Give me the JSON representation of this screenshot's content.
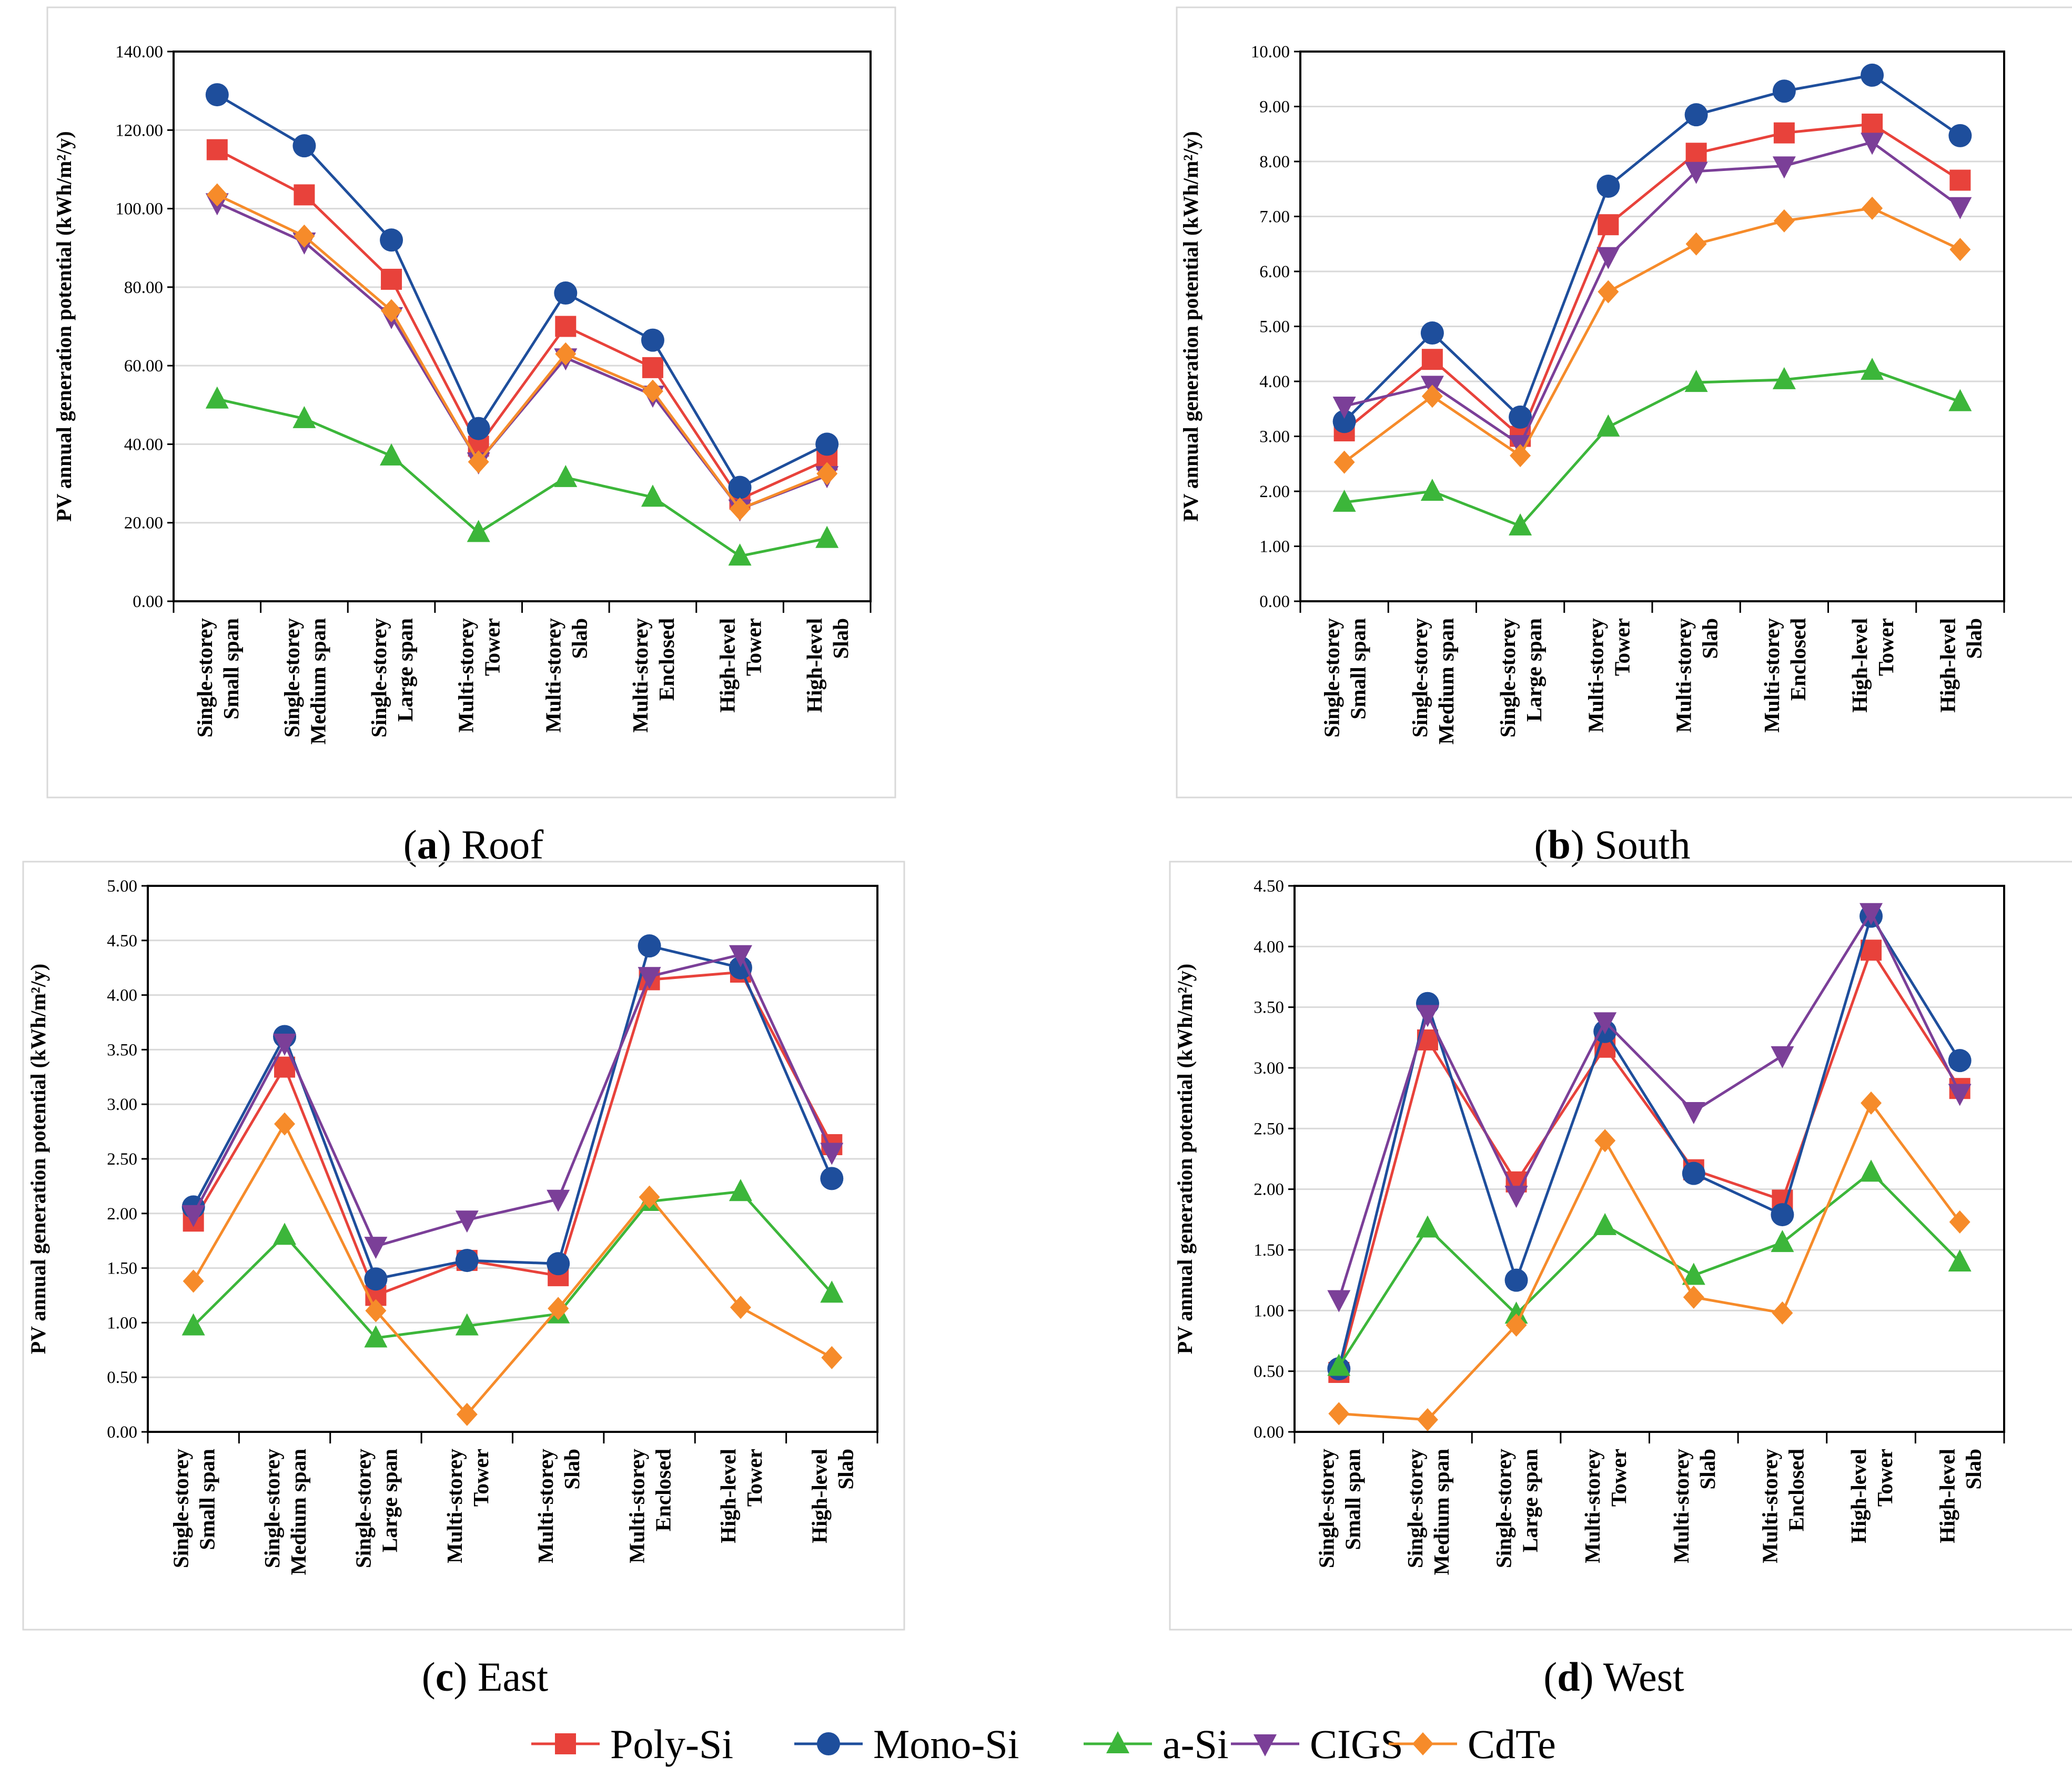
{
  "series_meta": [
    {
      "name": "Poly-Si",
      "color": "#e8423b",
      "marker": "square"
    },
    {
      "name": "Mono-Si",
      "color": "#1e4e9c",
      "marker": "circle"
    },
    {
      "name": "a-Si",
      "color": "#3cb63a",
      "marker": "triangle-up"
    },
    {
      "name": "CIGS",
      "color": "#7b3f98",
      "marker": "triangle-down"
    },
    {
      "name": "CdTe",
      "color": "#f68b2a",
      "marker": "diamond"
    }
  ],
  "chart_data": [
    {
      "type": "line",
      "caption_letter": "a",
      "caption_text": " Roof",
      "ylabel": "PV annual generation potential (kWh/m²/y)",
      "ylim": [
        0,
        140
      ],
      "yticks": [
        "0.00",
        "20.00",
        "40.00",
        "60.00",
        "80.00",
        "100.00",
        "120.00",
        "140.00"
      ],
      "categories": [
        [
          "Single-storey",
          "Small span"
        ],
        [
          "Single-storey",
          "Medium span"
        ],
        [
          "Single-storey",
          "Large span"
        ],
        [
          "Multi-storey",
          "Tower"
        ],
        [
          "Multi-storey",
          "Slab"
        ],
        [
          "Multi-storey",
          "Enclosed"
        ],
        [
          "High-level",
          "Tower"
        ],
        [
          "High-level",
          "Slab"
        ]
      ],
      "series": [
        {
          "name": "Poly-Si",
          "values": [
            115,
            103.5,
            82,
            39.5,
            70,
            59.5,
            26,
            36
          ]
        },
        {
          "name": "Mono-Si",
          "values": [
            129,
            116,
            92,
            44,
            78.5,
            66.5,
            29,
            40
          ]
        },
        {
          "name": "a-Si",
          "values": [
            51.5,
            46.5,
            37,
            17.5,
            31.5,
            26.5,
            11.5,
            16
          ]
        },
        {
          "name": "CIGS",
          "values": [
            101.5,
            91.5,
            72.5,
            35.5,
            62,
            52.5,
            23.5,
            32
          ]
        },
        {
          "name": "CdTe",
          "values": [
            103.5,
            93,
            74,
            35.5,
            63,
            53.5,
            23.5,
            32.5
          ]
        }
      ]
    },
    {
      "type": "line",
      "caption_letter": "b",
      "caption_text": " South",
      "ylabel": "PV annual generation potential (kWh/m²/y)",
      "ylim": [
        0,
        10
      ],
      "yticks": [
        "0.00",
        "1.00",
        "2.00",
        "3.00",
        "4.00",
        "5.00",
        "6.00",
        "7.00",
        "8.00",
        "9.00",
        "10.00"
      ],
      "categories": [
        [
          "Single-storey",
          "Small span"
        ],
        [
          "Single-storey",
          "Medium span"
        ],
        [
          "Single-storey",
          "Large span"
        ],
        [
          "Multi-storey",
          "Tower"
        ],
        [
          "Multi-storey",
          "Slab"
        ],
        [
          "Multi-storey",
          "Enclosed"
        ],
        [
          "High-level",
          "Tower"
        ],
        [
          "High-level",
          "Slab"
        ]
      ],
      "series": [
        {
          "name": "Poly-Si",
          "values": [
            3.1,
            4.4,
            3.0,
            6.85,
            8.15,
            8.52,
            8.68,
            7.66
          ]
        },
        {
          "name": "Mono-Si",
          "values": [
            3.27,
            4.88,
            3.35,
            7.55,
            8.85,
            9.28,
            9.57,
            8.47
          ]
        },
        {
          "name": "a-Si",
          "values": [
            1.8,
            2.0,
            1.37,
            3.17,
            3.98,
            4.03,
            4.2,
            3.63
          ]
        },
        {
          "name": "CIGS",
          "values": [
            3.55,
            3.93,
            2.85,
            6.27,
            7.82,
            7.92,
            8.35,
            7.18
          ]
        },
        {
          "name": "CdTe",
          "values": [
            2.53,
            3.73,
            2.65,
            5.63,
            6.5,
            6.92,
            7.15,
            6.4
          ]
        }
      ]
    },
    {
      "type": "line",
      "caption_letter": "c",
      "caption_text": " East",
      "ylabel": "PV annual generation potential (kWh/m²/y)",
      "ylim": [
        0,
        5
      ],
      "yticks": [
        "0.00",
        "0.50",
        "1.00",
        "1.50",
        "2.00",
        "2.50",
        "3.00",
        "3.50",
        "4.00",
        "4.50",
        "5.00"
      ],
      "categories": [
        [
          "Single-storey",
          "Small span"
        ],
        [
          "Single-storey",
          "Medium span"
        ],
        [
          "Single-storey",
          "Large span"
        ],
        [
          "Multi-storey",
          "Tower"
        ],
        [
          "Multi-storey",
          "Slab"
        ],
        [
          "Multi-storey",
          "Enclosed"
        ],
        [
          "High-level",
          "Tower"
        ],
        [
          "High-level",
          "Slab"
        ]
      ],
      "series": [
        {
          "name": "Poly-Si",
          "values": [
            1.93,
            3.34,
            1.25,
            1.57,
            1.43,
            4.14,
            4.21,
            2.63
          ]
        },
        {
          "name": "Mono-Si",
          "values": [
            2.06,
            3.62,
            1.4,
            1.57,
            1.54,
            4.45,
            4.25,
            2.32
          ]
        },
        {
          "name": "a-Si",
          "values": [
            0.97,
            1.8,
            0.86,
            0.97,
            1.08,
            2.11,
            2.2,
            1.27
          ]
        },
        {
          "name": "CIGS",
          "values": [
            1.99,
            3.56,
            1.7,
            1.94,
            2.13,
            4.17,
            4.37,
            2.56
          ]
        },
        {
          "name": "CdTe",
          "values": [
            1.38,
            2.82,
            1.11,
            0.16,
            1.13,
            2.15,
            1.14,
            0.68
          ]
        }
      ]
    },
    {
      "type": "line",
      "caption_letter": "d",
      "caption_text": " West",
      "ylabel": "PV annual generation potential (kWh/m²/y)",
      "ylim": [
        0,
        4.5
      ],
      "yticks": [
        "0.00",
        "0.50",
        "1.00",
        "1.50",
        "2.00",
        "2.50",
        "3.00",
        "3.50",
        "4.00",
        "4.50"
      ],
      "categories": [
        [
          "Single-storey",
          "Small span"
        ],
        [
          "Single-storey",
          "Medium span"
        ],
        [
          "Single-storey",
          "Large span"
        ],
        [
          "Multi-storey",
          "Tower"
        ],
        [
          "Multi-storey",
          "Slab"
        ],
        [
          "Multi-storey",
          "Enclosed"
        ],
        [
          "High-level",
          "Tower"
        ],
        [
          "High-level",
          "Slab"
        ]
      ],
      "series": [
        {
          "name": "Poly-Si",
          "values": [
            0.49,
            3.23,
            2.06,
            3.17,
            2.16,
            1.91,
            3.97,
            2.83
          ]
        },
        {
          "name": "Mono-Si",
          "values": [
            0.52,
            3.53,
            1.25,
            3.3,
            2.13,
            1.79,
            4.25,
            3.06
          ]
        },
        {
          "name": "a-Si",
          "values": [
            0.54,
            1.68,
            0.97,
            1.7,
            1.29,
            1.56,
            2.14,
            1.4
          ]
        },
        {
          "name": "CIGS",
          "values": [
            1.09,
            3.44,
            1.95,
            3.38,
            2.64,
            3.1,
            4.28,
            2.79
          ]
        },
        {
          "name": "CdTe",
          "values": [
            0.15,
            0.1,
            0.88,
            2.4,
            1.11,
            0.98,
            2.71,
            1.73
          ]
        }
      ]
    }
  ]
}
